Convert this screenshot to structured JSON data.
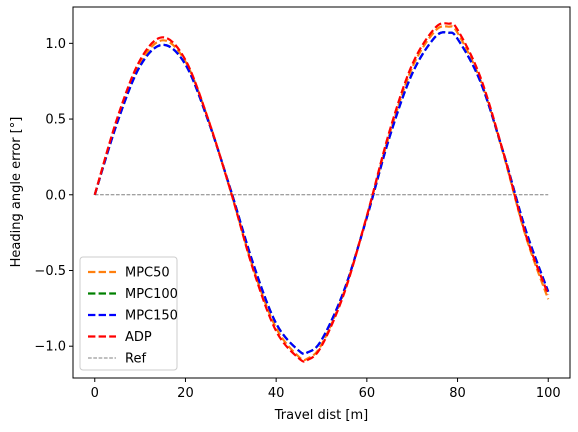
{
  "chart_data": {
    "type": "line",
    "title": "",
    "xlabel": "Travel dist [m]",
    "ylabel": "Heading angle error [°]",
    "xlim": [
      -4.8,
      104.8
    ],
    "ylim": [
      -1.21,
      1.24
    ],
    "xticks": [
      0,
      20,
      40,
      60,
      80,
      100
    ],
    "yticks": [
      -1.0,
      -0.5,
      0.0,
      0.5,
      1.0
    ],
    "xtick_labels": [
      "0",
      "20",
      "40",
      "60",
      "80",
      "100"
    ],
    "ytick_labels": [
      "−1.0",
      "−0.5",
      "0.0",
      "0.5",
      "1.0"
    ],
    "grid": false,
    "legend_position": "lower-left",
    "series": [
      {
        "name": "MPC50",
        "color": "#ff7f0e",
        "style": "dashed",
        "x": [
          0,
          5,
          10,
          15,
          20,
          25,
          30,
          35,
          40,
          45,
          47,
          50,
          55,
          60,
          65,
          70,
          75,
          78,
          80,
          85,
          90,
          95,
          100
        ],
        "y": [
          0.0,
          0.5,
          0.87,
          1.02,
          0.88,
          0.5,
          0.02,
          -0.49,
          -0.88,
          -1.07,
          -1.08,
          -0.99,
          -0.64,
          -0.14,
          0.4,
          0.84,
          1.08,
          1.11,
          1.07,
          0.76,
          0.28,
          -0.27,
          -0.69
        ]
      },
      {
        "name": "MPC100",
        "color": "#008000",
        "style": "dashed",
        "x": [
          0,
          5,
          10,
          15,
          20,
          25,
          30,
          35,
          40,
          45,
          47,
          50,
          55,
          60,
          65,
          70,
          75,
          78,
          80,
          85,
          90,
          95,
          100
        ],
        "y": [
          0.0,
          0.48,
          0.85,
          0.99,
          0.86,
          0.49,
          0.03,
          -0.46,
          -0.85,
          -1.03,
          -1.04,
          -0.96,
          -0.63,
          -0.15,
          0.38,
          0.8,
          1.04,
          1.07,
          1.03,
          0.75,
          0.29,
          -0.23,
          -0.64
        ]
      },
      {
        "name": "MPC150",
        "color": "#0000ff",
        "style": "dashed",
        "x": [
          0,
          5,
          10,
          15,
          20,
          25,
          30,
          35,
          40,
          45,
          47,
          50,
          55,
          60,
          65,
          70,
          75,
          78,
          80,
          85,
          90,
          95,
          100
        ],
        "y": [
          0.0,
          0.48,
          0.85,
          0.99,
          0.86,
          0.49,
          0.03,
          -0.46,
          -0.85,
          -1.03,
          -1.04,
          -0.96,
          -0.63,
          -0.15,
          0.38,
          0.8,
          1.04,
          1.07,
          1.03,
          0.75,
          0.29,
          -0.23,
          -0.64
        ]
      },
      {
        "name": "ADP",
        "color": "#ff0000",
        "style": "dashed",
        "x": [
          0,
          5,
          10,
          15,
          20,
          25,
          30,
          35,
          40,
          45,
          47,
          50,
          55,
          60,
          65,
          70,
          75,
          78,
          80,
          85,
          90,
          95,
          100
        ],
        "y": [
          0.0,
          0.51,
          0.89,
          1.04,
          0.89,
          0.5,
          0.02,
          -0.5,
          -0.9,
          -1.08,
          -1.09,
          -1.0,
          -0.65,
          -0.14,
          0.42,
          0.86,
          1.1,
          1.13,
          1.09,
          0.78,
          0.29,
          -0.26,
          -0.66
        ]
      },
      {
        "name": "Ref",
        "color": "#808080",
        "style": "dashed-thin",
        "x": [
          0,
          100
        ],
        "y": [
          0,
          0
        ]
      }
    ]
  }
}
